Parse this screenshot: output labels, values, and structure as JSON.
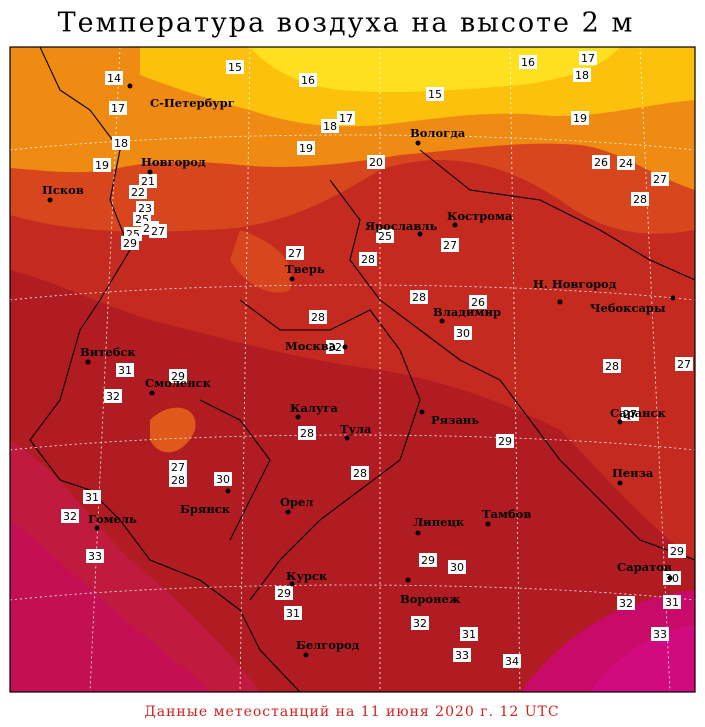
{
  "title": "Температура воздуха на высоте 2 м",
  "footer": "Данные метеостанций на 11 июня 2020 г. 12 UTC",
  "cities": [
    "С-Петербург",
    "Новгород",
    "Псков",
    "Вологда",
    "Ярославль",
    "Кострома",
    "Тверь",
    "Н. Новгород",
    "Чебоксары",
    "Владимир",
    "Москва",
    "Витебск",
    "Смоленск",
    "Калуга",
    "Рязань",
    "Тула",
    "Саранск",
    "Пенза",
    "Брянск",
    "Орел",
    "Гомель",
    "Липецк",
    "Тамбов",
    "Саратов",
    "Курск",
    "Воронеж",
    "Белгород"
  ],
  "contour_labels": [
    15,
    16,
    16,
    17,
    18,
    14,
    17,
    15,
    18,
    17,
    19,
    18,
    19,
    20,
    26,
    24,
    27,
    19,
    21,
    22,
    28,
    23,
    25,
    22,
    27,
    25,
    29,
    25,
    27,
    27,
    28,
    28,
    26,
    28,
    30,
    32,
    31,
    29,
    28,
    27,
    32,
    27,
    28,
    29,
    27,
    28,
    28,
    30,
    31,
    32,
    29,
    33,
    29,
    30,
    30,
    29,
    32,
    31,
    31,
    32,
    31,
    33,
    33,
    34
  ]
}
